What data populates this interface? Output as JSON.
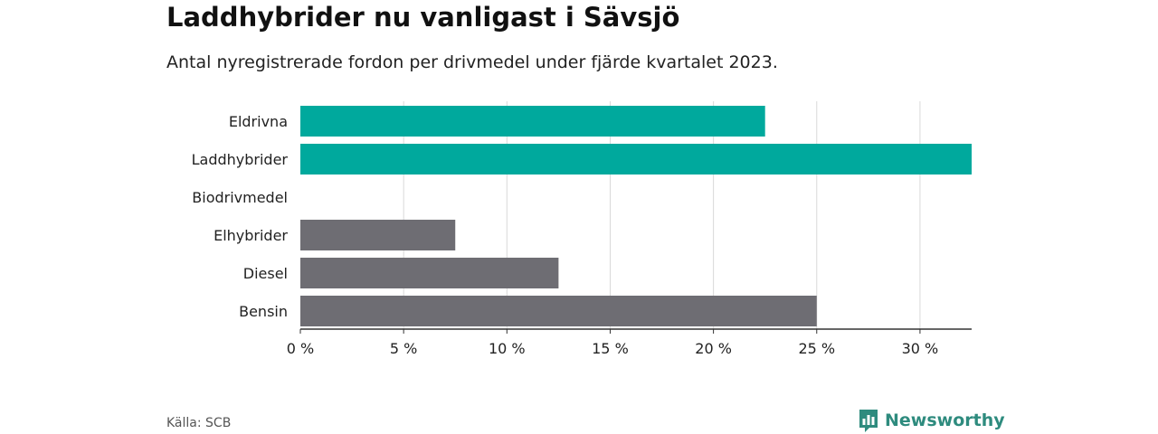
{
  "title": "Laddhybrider nu vanligast i Sävsjö",
  "subtitle": "Antal nyregistrerade fordon per drivmedel under fjärde kvartalet 2023.",
  "source": "Källa: SCB",
  "brand": {
    "name": "Newsworthy",
    "color": "#2e8b7e"
  },
  "colors": {
    "highlight": "#00a99d",
    "default": "#6e6d73",
    "grid": "#d9d9d9",
    "axis": "#333333"
  },
  "chart_data": {
    "type": "bar",
    "orientation": "horizontal",
    "categories": [
      "Eldrivna",
      "Laddhybrider",
      "Biodrivmedel",
      "Elhybrider",
      "Diesel",
      "Bensin"
    ],
    "values": [
      22.5,
      32.5,
      0,
      7.5,
      12.5,
      25
    ],
    "highlighted": [
      true,
      true,
      false,
      false,
      false,
      false
    ],
    "xlim": [
      0,
      32.5
    ],
    "xticks": [
      0,
      5,
      10,
      15,
      20,
      25,
      30
    ],
    "xtick_labels": [
      "0 %",
      "5 %",
      "10 %",
      "15 %",
      "20 %",
      "25 %",
      "30 %"
    ],
    "unit": "%",
    "grid": true
  }
}
